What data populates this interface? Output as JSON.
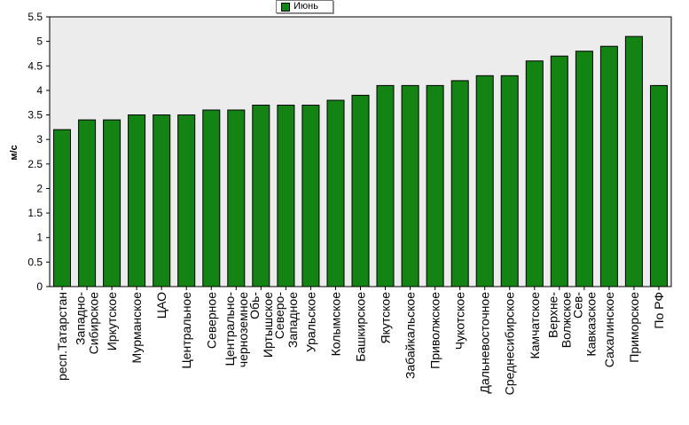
{
  "chart_data": {
    "type": "bar",
    "ylabel": "м/с",
    "xlabel": "",
    "ylim": [
      0,
      5.5
    ],
    "y_ticks": [
      0,
      0.5,
      1,
      1.5,
      2,
      2.5,
      3,
      3.5,
      4,
      4.5,
      5,
      5.5
    ],
    "grid": false,
    "legend": {
      "placement": "top-center",
      "entries": [
        "Июнь"
      ]
    },
    "colors": {
      "bar": "#138313",
      "plot_bg": "#ececec",
      "frame": "#000000"
    },
    "categories": [
      "респ.Татарстан",
      "Западно-Сибирское",
      "Иркутское",
      "Мурманское",
      "ЦАО",
      "Центральное",
      "Северное",
      "Центрально-черноземное",
      "Обь-Иртышское",
      "Северо-Западное",
      "Уральское",
      "Колымское",
      "Башкирское",
      "Якутское",
      "Забайкальское",
      "Приволжское",
      "Чукотское",
      "Дальневосточное",
      "Среднесибирское",
      "Камчатское",
      "Верхне-Волжское",
      "Сев-Кавказское",
      "Сахалинское",
      "Приморское",
      "По РФ"
    ],
    "tick_label_lines": [
      [
        "респ.Татарстан"
      ],
      [
        "Западно-",
        "Сибирское"
      ],
      [
        "Иркутское"
      ],
      [
        "Мурманское"
      ],
      [
        "ЦАО"
      ],
      [
        "Центральное"
      ],
      [
        "Северное"
      ],
      [
        "Центрально-",
        "черноземное"
      ],
      [
        "Обь-",
        "Иртышское"
      ],
      [
        "Северо-",
        "Западное"
      ],
      [
        "Уральское"
      ],
      [
        "Колымское"
      ],
      [
        "Башкирское"
      ],
      [
        "Якутское"
      ],
      [
        "Забайкальское"
      ],
      [
        "Приволжское"
      ],
      [
        "Чукотское"
      ],
      [
        "Дальневосточное"
      ],
      [
        "Среднесибирское"
      ],
      [
        "Камчатское"
      ],
      [
        "Верхне-",
        "Волжское"
      ],
      [
        "Сев-",
        "Кавказское"
      ],
      [
        "Сахалинское"
      ],
      [
        "Приморское"
      ],
      [
        "По РФ"
      ]
    ],
    "series": [
      {
        "name": "Июнь",
        "values": [
          3.2,
          3.4,
          3.4,
          3.5,
          3.5,
          3.5,
          3.6,
          3.6,
          3.7,
          3.7,
          3.7,
          3.8,
          3.9,
          4.1,
          4.1,
          4.1,
          4.2,
          4.3,
          4.3,
          4.6,
          4.7,
          4.8,
          4.9,
          5.1,
          4.1
        ]
      }
    ]
  }
}
